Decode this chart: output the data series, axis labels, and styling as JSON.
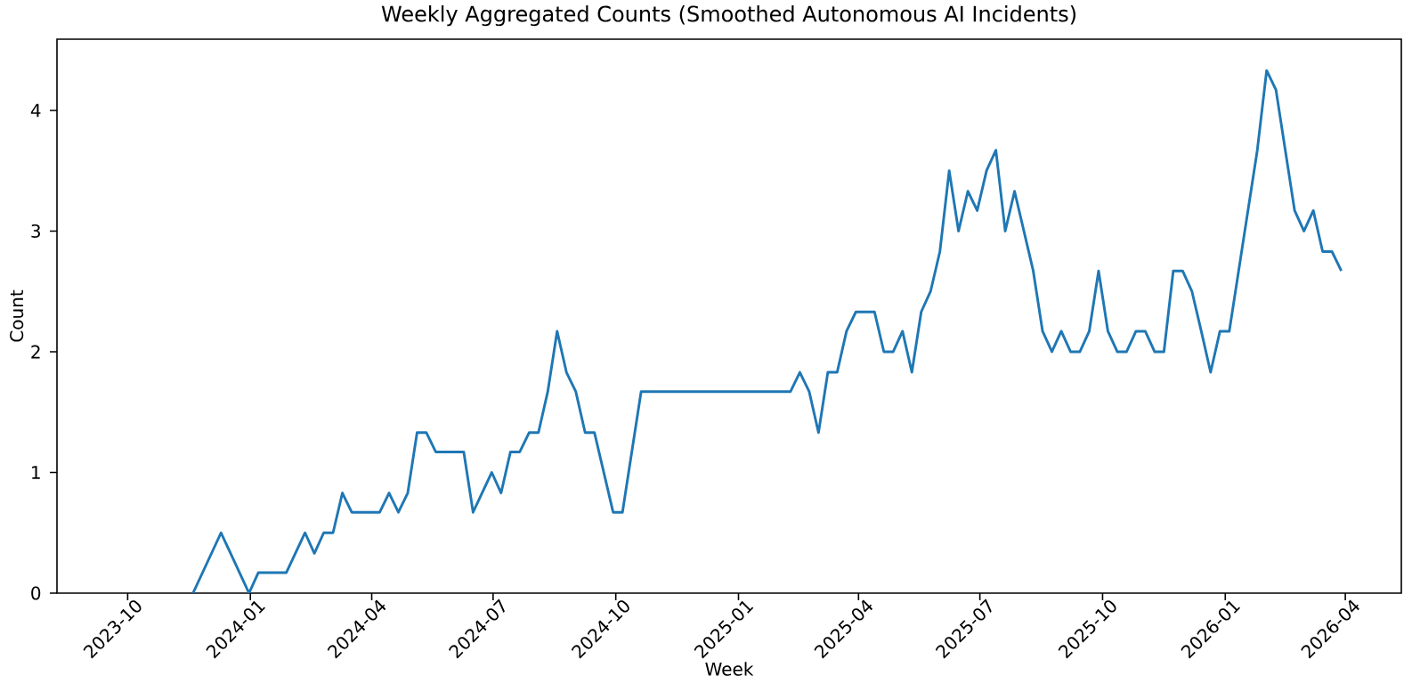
{
  "chart_data": {
    "type": "line",
    "title": "Weekly Aggregated Counts (Smoothed Autonomous AI Incidents)",
    "xlabel": "Week",
    "ylabel": "Count",
    "x": [
      "2023-11-19",
      "2023-12-10",
      "2023-12-31",
      "2024-01-07",
      "2024-01-28",
      "2024-02-11",
      "2024-02-18",
      "2024-02-25",
      "2024-03-03",
      "2024-03-10",
      "2024-03-17",
      "2024-04-07",
      "2024-04-14",
      "2024-04-21",
      "2024-04-28",
      "2024-05-05",
      "2024-05-12",
      "2024-05-19",
      "2024-06-09",
      "2024-06-16",
      "2024-06-30",
      "2024-07-07",
      "2024-07-14",
      "2024-07-21",
      "2024-07-28",
      "2024-08-04",
      "2024-08-11",
      "2024-08-18",
      "2024-08-25",
      "2024-09-01",
      "2024-09-08",
      "2024-09-15",
      "2024-09-29",
      "2024-10-06",
      "2024-10-20",
      "2025-02-09",
      "2025-02-16",
      "2025-02-23",
      "2025-03-02",
      "2025-03-09",
      "2025-03-16",
      "2025-03-23",
      "2025-03-30",
      "2025-04-13",
      "2025-04-20",
      "2025-04-27",
      "2025-05-04",
      "2025-05-11",
      "2025-05-18",
      "2025-05-25",
      "2025-06-01",
      "2025-06-08",
      "2025-06-15",
      "2025-06-22",
      "2025-06-29",
      "2025-07-06",
      "2025-07-13",
      "2025-07-20",
      "2025-07-27",
      "2025-08-03",
      "2025-08-10",
      "2025-08-17",
      "2025-08-24",
      "2025-08-31",
      "2025-09-07",
      "2025-09-14",
      "2025-09-21",
      "2025-09-28",
      "2025-10-05",
      "2025-10-12",
      "2025-10-19",
      "2025-10-26",
      "2025-11-02",
      "2025-11-09",
      "2025-11-16",
      "2025-11-23",
      "2025-11-30",
      "2025-12-07",
      "2025-12-14",
      "2025-12-21",
      "2025-12-28",
      "2026-01-04",
      "2026-01-11",
      "2026-01-18",
      "2026-01-25",
      "2026-02-01",
      "2026-02-08",
      "2026-02-15",
      "2026-02-22",
      "2026-03-01",
      "2026-03-08",
      "2026-03-15",
      "2026-03-22",
      "2026-03-29"
    ],
    "series": [
      {
        "color": "#1f77b4",
        "values": [
          0,
          0.5,
          0,
          0.17,
          0.17,
          0.5,
          0.33,
          0.5,
          0.5,
          0.83,
          0.67,
          0.67,
          0.83,
          0.67,
          0.83,
          1.33,
          1.33,
          1.17,
          1.17,
          0.67,
          1.0,
          0.83,
          1.17,
          1.17,
          1.33,
          1.33,
          1.67,
          2.17,
          1.83,
          1.67,
          1.33,
          1.33,
          0.67,
          0.67,
          1.67,
          1.67,
          1.83,
          1.67,
          1.33,
          1.83,
          1.83,
          2.17,
          2.33,
          2.33,
          2.0,
          2.0,
          2.17,
          1.83,
          2.33,
          2.5,
          2.83,
          3.5,
          3.0,
          3.33,
          3.17,
          3.5,
          3.67,
          3.0,
          3.33,
          3.0,
          2.67,
          2.17,
          2.0,
          2.17,
          2.0,
          2.0,
          2.17,
          2.67,
          2.17,
          2.0,
          2.0,
          2.17,
          2.17,
          2.0,
          2.0,
          2.67,
          2.67,
          2.5,
          2.17,
          1.83,
          2.17,
          2.17,
          2.67,
          3.17,
          3.67,
          4.33,
          4.17,
          3.67,
          3.17,
          3.0,
          3.17,
          2.83,
          2.83,
          2.67
        ]
      }
    ],
    "xlim": [
      "2023-08-09",
      "2026-05-13"
    ],
    "xticks": [
      {
        "value": "2023-10-01",
        "label": "2023-10"
      },
      {
        "value": "2024-01-01",
        "label": "2024-01"
      },
      {
        "value": "2024-04-01",
        "label": "2024-04"
      },
      {
        "value": "2024-07-01",
        "label": "2024-07"
      },
      {
        "value": "2024-10-01",
        "label": "2024-10"
      },
      {
        "value": "2025-01-01",
        "label": "2025-01"
      },
      {
        "value": "2025-04-01",
        "label": "2025-04"
      },
      {
        "value": "2025-07-01",
        "label": "2025-07"
      },
      {
        "value": "2025-10-01",
        "label": "2025-10"
      },
      {
        "value": "2026-01-01",
        "label": "2026-01"
      },
      {
        "value": "2026-04-01",
        "label": "2026-04"
      }
    ],
    "ylim": [
      0,
      4.59
    ],
    "yticks": [
      0,
      1,
      2,
      3,
      4
    ],
    "grid": false,
    "marker": "none",
    "line_style": "solid"
  }
}
